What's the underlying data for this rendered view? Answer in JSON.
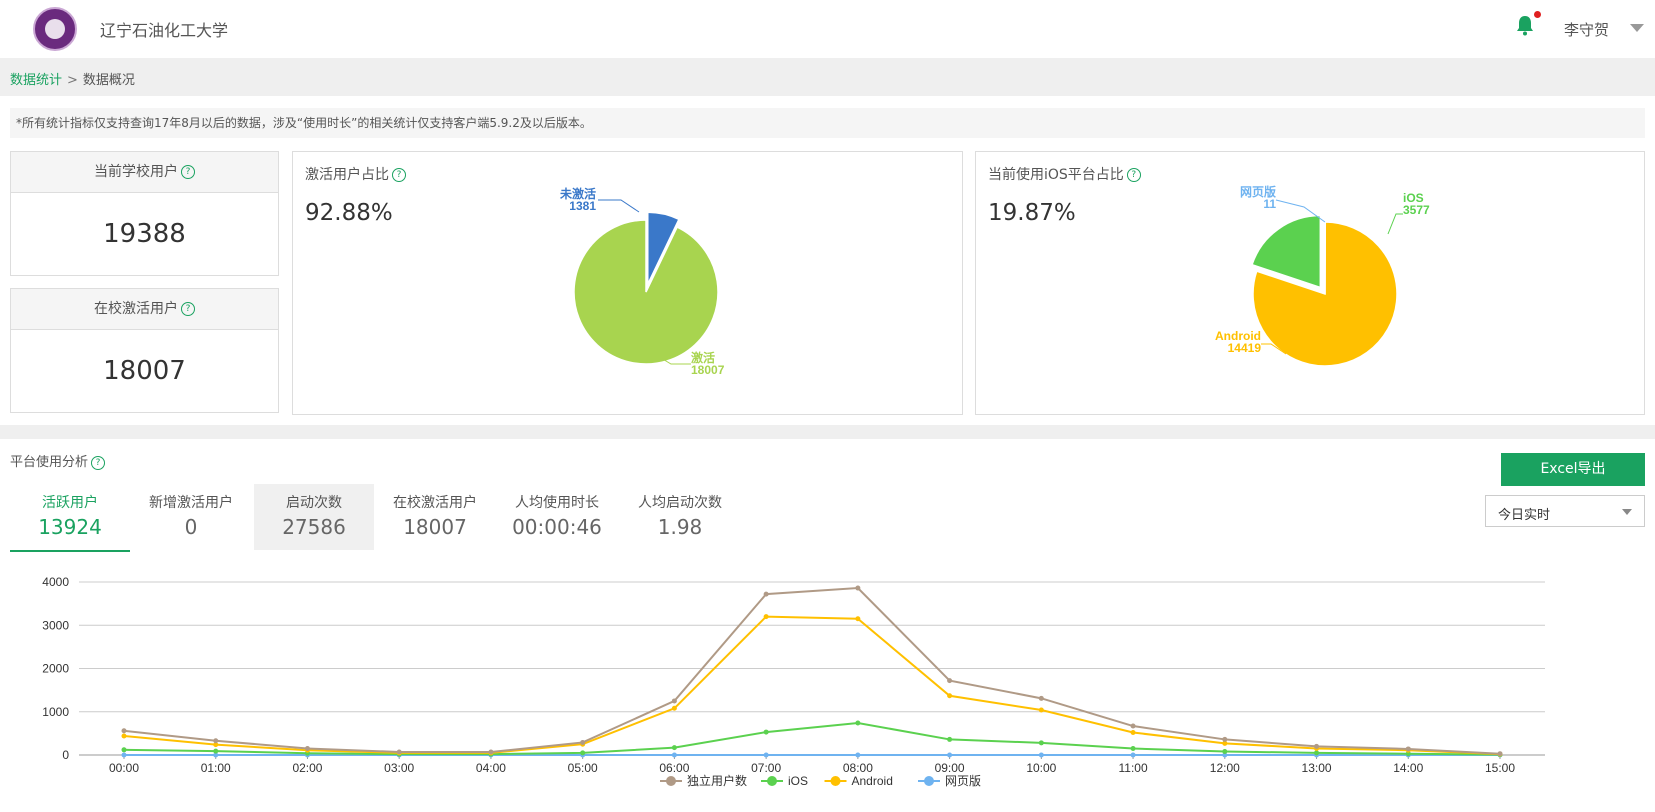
{
  "header": {
    "school_name": "辽宁石油化工大学",
    "user_name": "李守贺",
    "notification_icon": "bell-icon",
    "accent_color": "#1aa260"
  },
  "breadcrumb": {
    "parent": "数据统计",
    "separator": ">",
    "current": "数据概况"
  },
  "notice": "*所有统计指标仅支持查询17年8月以后的数据，涉及“使用时长”的相关统计仅支持客户端5.9.2及以后版本。",
  "stats": {
    "school_users": {
      "label": "当前学校用户",
      "value": "19388"
    },
    "active_users": {
      "label": "在校激活用户",
      "value": "18007"
    }
  },
  "activation_panel": {
    "title": "激活用户占比",
    "percent": "92.88%",
    "chart_data": {
      "type": "pie",
      "slices": [
        {
          "label": "激活",
          "value": 18007,
          "color": "#a8d44f"
        },
        {
          "label": "未激活",
          "value": 1381,
          "color": "#3a78c9"
        }
      ]
    }
  },
  "ios_panel": {
    "title": "当前使用iOS平台占比",
    "percent": "19.87%",
    "chart_data": {
      "type": "pie",
      "slices": [
        {
          "label": "iOS",
          "value": 3577,
          "color": "#5bd14f"
        },
        {
          "label": "Android",
          "value": 14419,
          "color": "#ffc000"
        },
        {
          "label": "网页版",
          "value": 11,
          "color": "#6fb3f0"
        }
      ]
    }
  },
  "analysis": {
    "title": "平台使用分析",
    "export_label": "Excel导出",
    "range_select": "今日实时",
    "tabs": [
      {
        "label": "活跃用户",
        "value": "13924"
      },
      {
        "label": "新增激活用户",
        "value": "0"
      },
      {
        "label": "启动次数",
        "value": "27586"
      },
      {
        "label": "在校激活用户",
        "value": "18007"
      },
      {
        "label": "人均使用时长",
        "value": "00:00:46"
      },
      {
        "label": "人均启动次数",
        "value": "1.98"
      }
    ]
  },
  "chart_data": {
    "type": "line",
    "categories": [
      "00:00",
      "01:00",
      "02:00",
      "03:00",
      "04:00",
      "05:00",
      "06:00",
      "07:00",
      "08:00",
      "09:00",
      "10:00",
      "11:00",
      "12:00",
      "13:00",
      "14:00",
      "15:00"
    ],
    "ylim": [
      0,
      4000
    ],
    "yticks": [
      0,
      1000,
      2000,
      3000,
      4000
    ],
    "grid": true,
    "legend_position": "bottom",
    "series": [
      {
        "name": "独立用户数",
        "color": "#b09a86",
        "values": [
          560,
          330,
          150,
          70,
          70,
          290,
          1250,
          3720,
          3860,
          1720,
          1310,
          670,
          360,
          200,
          140,
          30
        ]
      },
      {
        "name": "iOS",
        "color": "#5bd14f",
        "values": [
          120,
          90,
          40,
          20,
          20,
          50,
          170,
          530,
          740,
          360,
          280,
          150,
          80,
          50,
          30,
          10
        ]
      },
      {
        "name": "Android",
        "color": "#ffc000",
        "values": [
          440,
          240,
          110,
          50,
          50,
          250,
          1080,
          3200,
          3150,
          1370,
          1040,
          520,
          270,
          150,
          110,
          20
        ]
      },
      {
        "name": "网页版",
        "color": "#6fb3f0",
        "values": [
          0,
          0,
          0,
          0,
          0,
          0,
          0,
          0,
          0,
          0,
          0,
          0,
          0,
          0,
          0,
          0
        ]
      }
    ]
  }
}
